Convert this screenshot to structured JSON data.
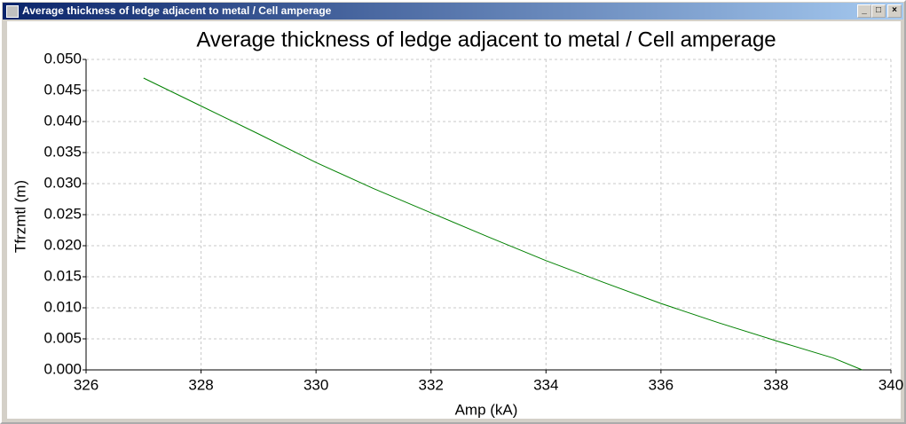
{
  "window": {
    "title": "Average thickness of ledge adjacent to metal / Cell amperage"
  },
  "chart_data": {
    "type": "line",
    "title": "Average thickness of ledge adjacent to metal / Cell amperage",
    "x_label": "Amp (kA)",
    "y_label": "Tfrzmtl (m)",
    "x": [
      327,
      328,
      329,
      330,
      331,
      332,
      333,
      334,
      335,
      336,
      337,
      338,
      339,
      339.5
    ],
    "series": [
      {
        "color": "#008000",
        "values": [
          0.047,
          0.0425,
          0.038,
          0.0334,
          0.0292,
          0.0253,
          0.0214,
          0.0176,
          0.0141,
          0.0107,
          0.0076,
          0.0047,
          0.0019,
          0.0
        ]
      }
    ],
    "xlim": [
      326,
      340
    ],
    "xticks": [
      326,
      328,
      330,
      332,
      334,
      336,
      338,
      340
    ],
    "ylim": [
      0,
      0.05
    ],
    "yticks": [
      {
        "value": 0,
        "label": "0.000"
      },
      {
        "value": 0.005,
        "label": "0.005"
      },
      {
        "value": 0.01,
        "label": "0.010"
      },
      {
        "value": 0.015,
        "label": "0.015"
      },
      {
        "value": 0.02,
        "label": "0.020"
      },
      {
        "value": 0.025,
        "label": "0.025"
      },
      {
        "value": 0.03,
        "label": "0.030"
      },
      {
        "value": 0.035,
        "label": "0.035"
      },
      {
        "value": 0.04,
        "label": "0.040"
      },
      {
        "value": 0.045,
        "label": "0.045"
      },
      {
        "value": 0.05,
        "label": "0.050"
      }
    ],
    "grid": true
  }
}
